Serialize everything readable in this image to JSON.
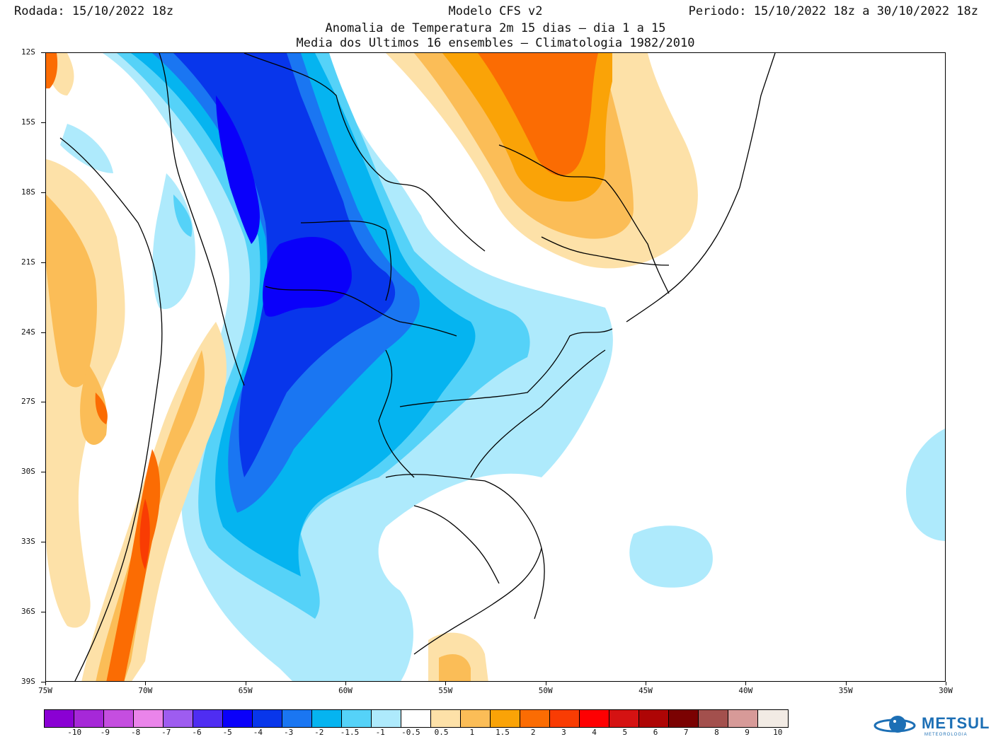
{
  "header": {
    "run": "Rodada: 15/10/2022 18z",
    "model": "Modelo CFS v2",
    "period": "Periodo: 15/10/2022 18z a 30/10/2022 18z",
    "subtitle1": "Anomalia de Temperatura 2m 15 dias – dia 1 a 15",
    "subtitle2": "Media dos Ultimos 16 ensembles – Climatologia 1982/2010"
  },
  "axes": {
    "lat_labels": [
      "12S",
      "15S",
      "18S",
      "21S",
      "24S",
      "27S",
      "30S",
      "33S",
      "36S",
      "39S"
    ],
    "lon_labels": [
      "75W",
      "70W",
      "65W",
      "60W",
      "55W",
      "50W",
      "45W",
      "40W",
      "35W",
      "30W"
    ],
    "lat_range": [
      -12,
      -39
    ],
    "lon_range": [
      -75,
      -30
    ]
  },
  "legend": {
    "colors": [
      "#8a00d4",
      "#a628d8",
      "#c54ee0",
      "#ea84ea",
      "#9e5cf0",
      "#4f2df2",
      "#0a00fa",
      "#0836eb",
      "#1a76f2",
      "#05b4f0",
      "#55d2f8",
      "#aeeafc",
      "#ffffff",
      "#fde1a8",
      "#fbbd57",
      "#faa307",
      "#fb6c03",
      "#f93c03",
      "#fe0002",
      "#d51212",
      "#ae0505",
      "#7b0202",
      "#a3504d",
      "#d79a98",
      "#f2ebe4"
    ],
    "labels": [
      "-10",
      "-9",
      "-8",
      "-7",
      "-6",
      "-5",
      "-4",
      "-3",
      "-2",
      "-1.5",
      "-1",
      "-0.5",
      "0.5",
      "1",
      "1.5",
      "2",
      "3",
      "4",
      "5",
      "6",
      "7",
      "8",
      "9",
      "10"
    ]
  },
  "logo": {
    "name": "METSUL",
    "sub": "METEOROLOGIA"
  }
}
